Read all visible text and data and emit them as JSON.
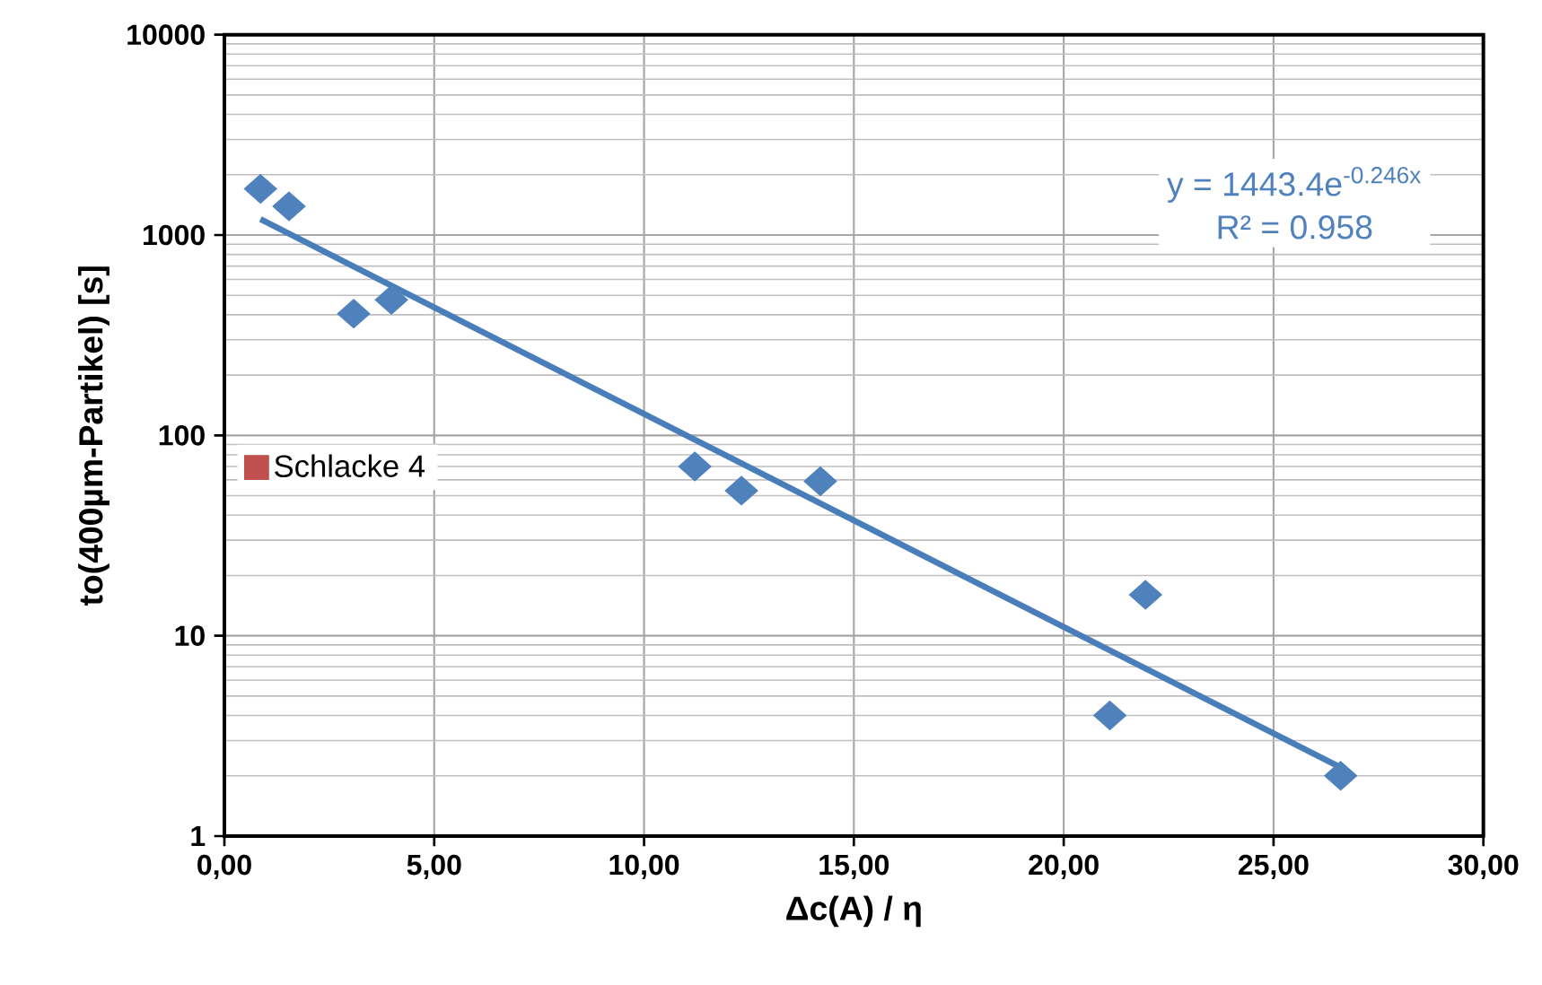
{
  "chart_data": {
    "type": "scatter",
    "xlabel": "Δc(A) / η",
    "ylabel": "to(400µm-Partikel) [s]",
    "x": [
      0.86,
      1.54,
      3.08,
      3.98,
      11.21,
      12.32,
      14.2,
      21.1,
      21.95,
      26.6
    ],
    "series": [
      {
        "color": "#4f81bd",
        "marker": "diamond",
        "values": [
          1700,
          1390,
          405,
          475,
          70,
          53,
          59,
          4,
          16,
          2
        ]
      },
      {
        "name": "Schlacke 4",
        "color": "#c0504d",
        "marker": "square",
        "values": [
          null,
          null,
          null,
          null,
          null,
          null,
          null,
          null,
          null,
          null
        ]
      },
      {
        "type": "line",
        "color": "#4a7ebb",
        "line_style": "solid",
        "x": [
          0.86,
          26.6
        ],
        "values": [
          1200,
          2.2
        ]
      }
    ],
    "log": "y",
    "xlim": [
      0,
      30
    ],
    "ylim": [
      1,
      10000
    ],
    "xticks": [
      {
        "value": 0,
        "label": "0,00"
      },
      {
        "value": 5,
        "label": "5,00"
      },
      {
        "value": 10,
        "label": "10,00"
      },
      {
        "value": 15,
        "label": "15,00"
      },
      {
        "value": 20,
        "label": "20,00"
      },
      {
        "value": 25,
        "label": "25,00"
      },
      {
        "value": 30,
        "label": "30,00"
      }
    ],
    "yticks": [
      1,
      10,
      100,
      1000,
      10000
    ],
    "grid": true,
    "legend": "left",
    "annotations": [
      "y = 1443.4e$^{-0.246x}$",
      "R² = 0.958"
    ]
  }
}
